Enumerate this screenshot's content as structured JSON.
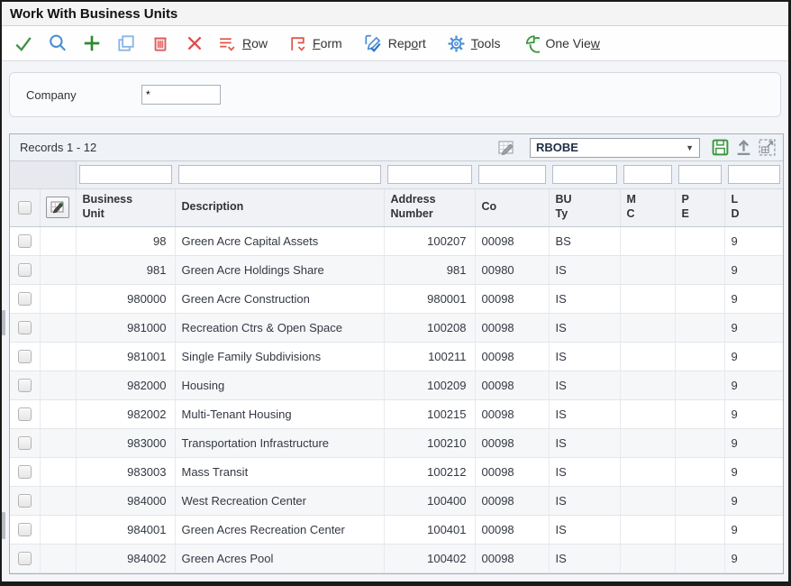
{
  "window": {
    "title": "Work With Business Units"
  },
  "colors": {
    "toolbar_green": "#2f8a2f",
    "toolbar_blue": "#4a8fd4",
    "toolbar_red": "#e04c4c",
    "menu_icon_red": "#e2574c",
    "save_green": "#3d9642",
    "gray_icon": "#8a9099"
  },
  "toolbar": {
    "icon_buttons": [
      {
        "name": "select",
        "icon": "check-icon"
      },
      {
        "name": "find",
        "icon": "search-icon"
      },
      {
        "name": "add",
        "icon": "plus-icon"
      },
      {
        "name": "copy",
        "icon": "copy-icon"
      },
      {
        "name": "delete",
        "icon": "trash-icon"
      },
      {
        "name": "close",
        "icon": "close-icon"
      }
    ],
    "menus": [
      {
        "id": "row",
        "pre": "",
        "u": "R",
        "post": "ow"
      },
      {
        "id": "form",
        "pre": "",
        "u": "F",
        "post": "orm"
      },
      {
        "id": "report",
        "pre": "Rep",
        "u": "o",
        "post": "rt"
      },
      {
        "id": "tools",
        "pre": "",
        "u": "T",
        "post": "ools"
      },
      {
        "id": "one_view",
        "pre": "One Vie",
        "u": "w",
        "post": ""
      }
    ]
  },
  "form": {
    "company_label": "Company",
    "company_value": "*"
  },
  "grid": {
    "records_label": "Records 1 - 12",
    "format_select": {
      "value": "RBOBE",
      "arrow": "▼"
    },
    "column_labels": {
      "business_unit": "Business\nUnit",
      "description": "Description",
      "address_number": "Address\nNumber",
      "co": "Co",
      "bu_ty": "BU\nTy",
      "m_c": "M\nC",
      "p_e": "P\nE",
      "l_d": "L\nD"
    },
    "rows": [
      {
        "bu": "98",
        "description": "Green Acre Capital Assets",
        "address_number": "100207",
        "co": "00098",
        "bu_ty": "BS",
        "mc": "",
        "pe": "",
        "ld": "9"
      },
      {
        "bu": "981",
        "description": "Green Acre Holdings Share",
        "address_number": "981",
        "co": "00980",
        "bu_ty": "IS",
        "mc": "",
        "pe": "",
        "ld": "9"
      },
      {
        "bu": "980000",
        "description": "Green Acre Construction",
        "address_number": "980001",
        "co": "00098",
        "bu_ty": "IS",
        "mc": "",
        "pe": "",
        "ld": "9"
      },
      {
        "bu": "981000",
        "description": "Recreation Ctrs & Open Space",
        "address_number": "100208",
        "co": "00098",
        "bu_ty": "IS",
        "mc": "",
        "pe": "",
        "ld": "9"
      },
      {
        "bu": "981001",
        "description": "Single Family Subdivisions",
        "address_number": "100211",
        "co": "00098",
        "bu_ty": "IS",
        "mc": "",
        "pe": "",
        "ld": "9"
      },
      {
        "bu": "982000",
        "description": "Housing",
        "address_number": "100209",
        "co": "00098",
        "bu_ty": "IS",
        "mc": "",
        "pe": "",
        "ld": "9"
      },
      {
        "bu": "982002",
        "description": "Multi-Tenant Housing",
        "address_number": "100215",
        "co": "00098",
        "bu_ty": "IS",
        "mc": "",
        "pe": "",
        "ld": "9"
      },
      {
        "bu": "983000",
        "description": "Transportation Infrastructure",
        "address_number": "100210",
        "co": "00098",
        "bu_ty": "IS",
        "mc": "",
        "pe": "",
        "ld": "9"
      },
      {
        "bu": "983003",
        "description": "Mass Transit",
        "address_number": "100212",
        "co": "00098",
        "bu_ty": "IS",
        "mc": "",
        "pe": "",
        "ld": "9"
      },
      {
        "bu": "984000",
        "description": "West Recreation Center",
        "address_number": "100400",
        "co": "00098",
        "bu_ty": "IS",
        "mc": "",
        "pe": "",
        "ld": "9"
      },
      {
        "bu": "984001",
        "description": "Green Acres Recreation Center",
        "address_number": "100401",
        "co": "00098",
        "bu_ty": "IS",
        "mc": "",
        "pe": "",
        "ld": "9"
      },
      {
        "bu": "984002",
        "description": "Green Acres Pool",
        "address_number": "100402",
        "co": "00098",
        "bu_ty": "IS",
        "mc": "",
        "pe": "",
        "ld": "9"
      }
    ]
  }
}
